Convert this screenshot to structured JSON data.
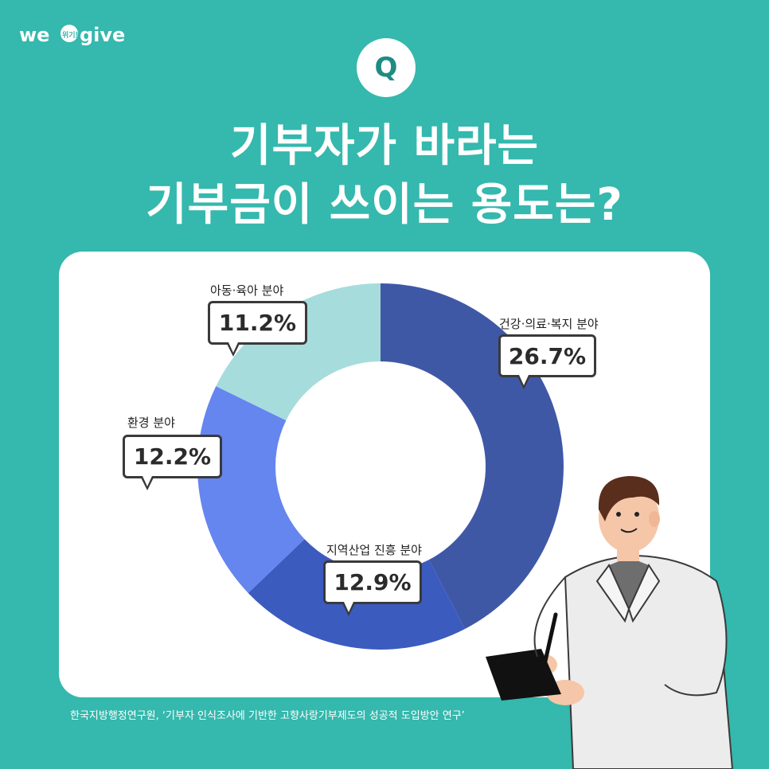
{
  "brand": {
    "logo_text_a": "we",
    "logo_text_b": "give",
    "logo_sub": "위기브"
  },
  "q_badge": "Q",
  "title": {
    "line1": "기부자가 바라는",
    "line2": "기부금이 쓰이는 용도는?"
  },
  "source": "한국지방행정연구원, ‘기부자 인식조사에 기반한 고향사랑기부제도의 성공적 도입방안 연구’",
  "colors": {
    "background": "#35b8ad",
    "health": "#3f58a6",
    "region": "#3b5bbf",
    "environment": "#6585ef",
    "children": "#a6dcdc"
  },
  "chart_data": {
    "type": "pie",
    "donut": true,
    "title": "기부금이 쓰이는 용도",
    "slices": [
      {
        "label": "건강·의료·복지 분야",
        "value": 26.7,
        "display": "26.7%",
        "color": "#3f58a6"
      },
      {
        "label": "지역산업 진흥 분야",
        "value": 12.9,
        "display": "12.9%",
        "color": "#3b5bbf"
      },
      {
        "label": "환경 분야",
        "value": 12.2,
        "display": "12.2%",
        "color": "#6585ef"
      },
      {
        "label": "아동·육아 분야",
        "value": 11.2,
        "display": "11.2%",
        "color": "#a6dcdc"
      }
    ]
  }
}
